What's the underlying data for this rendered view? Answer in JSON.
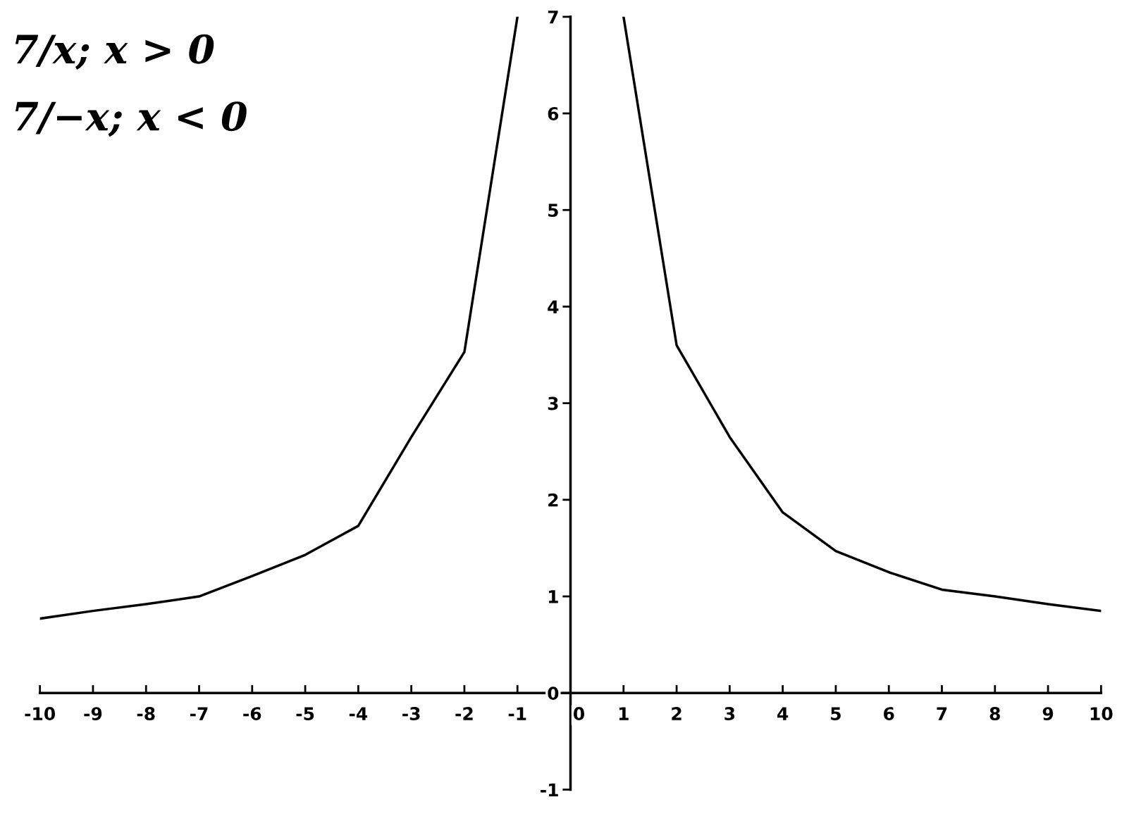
{
  "chart_data": {
    "type": "line",
    "annotations": [
      "7/x; x > 0",
      "7/−x; x < 0"
    ],
    "series": [
      {
        "color": "#000000",
        "x": [
          -10,
          -9,
          -8,
          -7,
          -6,
          -5,
          -4,
          -3,
          -2,
          -1
        ],
        "values": [
          0.77,
          0.85,
          0.92,
          1.0,
          1.21,
          1.43,
          1.73,
          2.65,
          3.53,
          7.0
        ]
      },
      {
        "color": "#000000",
        "x": [
          1,
          2,
          3,
          4,
          5,
          6,
          7,
          8,
          9,
          10
        ],
        "values": [
          7.0,
          3.6,
          2.65,
          1.87,
          1.47,
          1.25,
          1.07,
          1.0,
          0.92,
          0.85
        ]
      }
    ],
    "xlim": [
      -10,
      10
    ],
    "ylim": [
      -1,
      7
    ],
    "xticks": [
      -10,
      -9,
      -8,
      -7,
      -6,
      -5,
      -4,
      -3,
      -2,
      -1,
      0,
      1,
      2,
      3,
      4,
      5,
      6,
      7,
      8,
      9,
      10
    ],
    "yticks": [
      -1,
      0,
      1,
      2,
      3,
      4,
      5,
      6,
      7
    ],
    "grid": false,
    "legend": false,
    "marker": "none",
    "line_style": "solid"
  }
}
